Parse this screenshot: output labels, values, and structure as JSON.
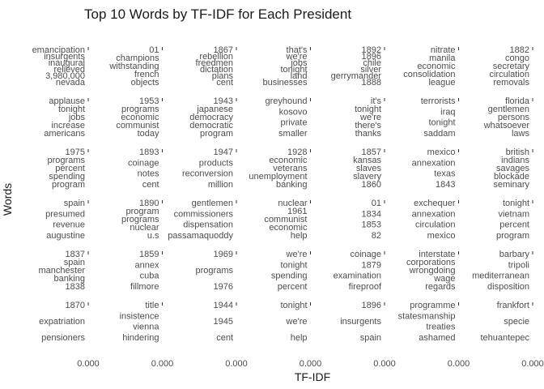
{
  "chart_data": {
    "type": "bar",
    "orientation": "horizontal",
    "faceted": true,
    "layout": {
      "rows": 6,
      "cols": 7
    },
    "title": "Top 10 Words by TF-IDF for Each President",
    "xlabel": "TF-IDF",
    "ylabel": "Words",
    "x_tick_labels": [
      "0.000",
      "0.000",
      "0.000",
      "0.000",
      "0.000",
      "0.000",
      "0.000"
    ],
    "grid": false,
    "facets": [
      {
        "words": [
          "emancipation",
          "insurgents",
          "inaugural",
          "relieved",
          "3,980,000",
          "nevada"
        ]
      },
      {
        "words": [
          "01",
          "champions",
          "withstanding",
          "french",
          "objects"
        ]
      },
      {
        "words": [
          "1867",
          "rebellion",
          "freedmen",
          "dictation",
          "plans",
          "cent"
        ]
      },
      {
        "words": [
          "that's",
          "we're",
          "jobs",
          "tonight",
          "land",
          "businesses"
        ]
      },
      {
        "words": [
          "1892",
          "1896",
          "chile",
          "silver",
          "gerrymander",
          "1888"
        ]
      },
      {
        "words": [
          "nitrate",
          "manila",
          "economic",
          "consolidation",
          "league"
        ]
      },
      {
        "words": [
          "1882",
          "congo",
          "secretary",
          "circulation",
          "removals"
        ]
      },
      {
        "words": [
          "applause",
          "tonight",
          "jobs",
          "increase",
          "americans"
        ]
      },
      {
        "words": [
          "1953",
          "programs",
          "economic",
          "communist",
          "today"
        ]
      },
      {
        "words": [
          "1943",
          "japanese",
          "democracy",
          "democratic",
          "program"
        ]
      },
      {
        "words": [
          "greyhound",
          "kosovo",
          "private",
          "smaller"
        ]
      },
      {
        "words": [
          "it's",
          "tonight",
          "we're",
          "there's",
          "thanks"
        ]
      },
      {
        "words": [
          "terrorists",
          "iraq",
          "tonight",
          "saddam"
        ]
      },
      {
        "words": [
          "florida",
          "gentlemen",
          "persons",
          "whatsoever",
          "laws"
        ]
      },
      {
        "words": [
          "1975",
          "programs",
          "percent",
          "spending",
          "program"
        ]
      },
      {
        "words": [
          "1893",
          "coinage",
          "notes",
          "cent"
        ]
      },
      {
        "words": [
          "1947",
          "products",
          "reconversion",
          "million"
        ]
      },
      {
        "words": [
          "1928",
          "economic",
          "veterans",
          "unemployment",
          "banking"
        ]
      },
      {
        "words": [
          "1857",
          "kansas",
          "slaves",
          "slavery",
          "1860"
        ]
      },
      {
        "words": [
          "mexico",
          "annexation",
          "texas",
          "1843"
        ]
      },
      {
        "words": [
          "british",
          "indians",
          "savages",
          "blockade",
          "seminary"
        ]
      },
      {
        "words": [
          "spain",
          "presumed",
          "revenue",
          "augustine"
        ]
      },
      {
        "words": [
          "1890",
          "program",
          "programs",
          "nuclear",
          "u.s"
        ]
      },
      {
        "words": [
          "gentlemen",
          "commissioners",
          "dispensation",
          "passamaquoddy"
        ]
      },
      {
        "words": [
          "nuclear",
          "1961",
          "communist",
          "economic",
          "help"
        ]
      },
      {
        "words": [
          "01",
          "1834",
          "1853",
          "82"
        ]
      },
      {
        "words": [
          "exchequer",
          "annexation",
          "circulation",
          "mexico"
        ]
      },
      {
        "words": [
          "tonight",
          "vietnam",
          "percent",
          "program"
        ]
      },
      {
        "words": [
          "1837",
          "spain",
          "manchester",
          "banking",
          "1838"
        ]
      },
      {
        "words": [
          "1859",
          "annex",
          "cuba",
          "fillmore"
        ]
      },
      {
        "words": [
          "1969",
          "programs",
          "1976"
        ]
      },
      {
        "words": [
          "we're",
          "tonight",
          "spending",
          "percent"
        ]
      },
      {
        "words": [
          "coinage",
          "1879",
          "examination",
          "fireproof"
        ]
      },
      {
        "words": [
          "interstate",
          "corporations",
          "wrongdoing",
          "wage",
          "regards"
        ]
      },
      {
        "words": [
          "barbary",
          "tripoli",
          "mediterranean",
          "disposition"
        ]
      },
      {
        "words": [
          "1870",
          "expatriation",
          "pensioners"
        ]
      },
      {
        "words": [
          "title",
          "insistence",
          "vienna",
          "hindering"
        ]
      },
      {
        "words": [
          "1944",
          "1945",
          "cent"
        ]
      },
      {
        "words": [
          "tonight",
          "we're",
          "help"
        ]
      },
      {
        "words": [
          "1896",
          "insurgents",
          "spain"
        ]
      },
      {
        "words": [
          "programme",
          "statesmanship",
          "treaties",
          "ashamed"
        ]
      },
      {
        "words": [
          "frankfort",
          "specie",
          "tehuantepec"
        ]
      }
    ]
  }
}
